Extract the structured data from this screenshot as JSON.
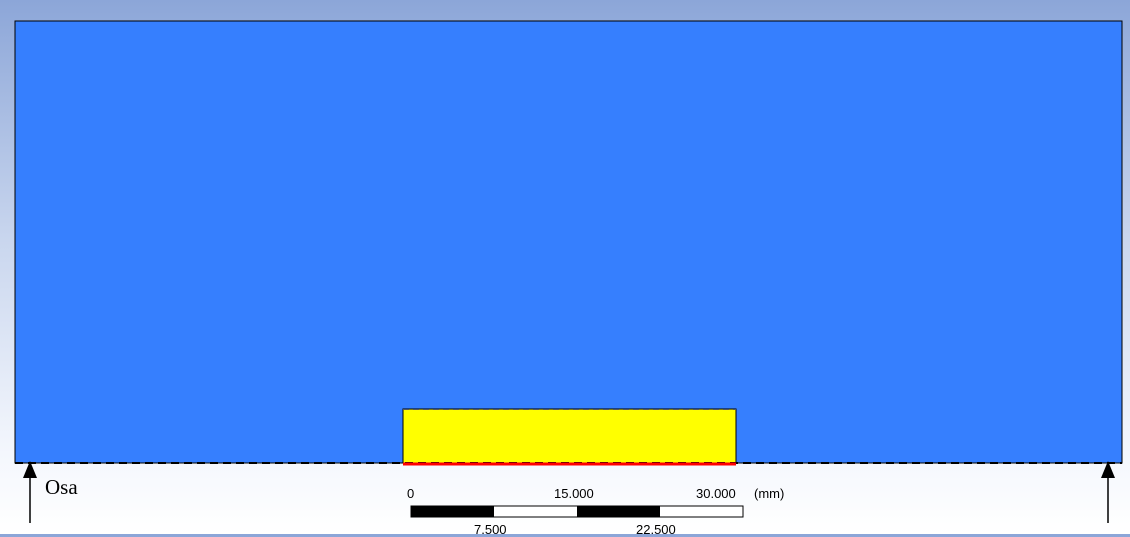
{
  "axis": {
    "label": "Osa"
  },
  "scale_bar": {
    "unit": "(mm)",
    "top_ticks": [
      "0",
      "15.000",
      "30.000"
    ],
    "bottom_ticks": [
      "7.500",
      "22.500"
    ]
  },
  "colors": {
    "domain_fill": "#367ffe",
    "body_fill": "#ffff00",
    "highlight_edge": "#ff0000",
    "background_top": "#8ca6d8",
    "background_bottom": "#ffffff"
  }
}
